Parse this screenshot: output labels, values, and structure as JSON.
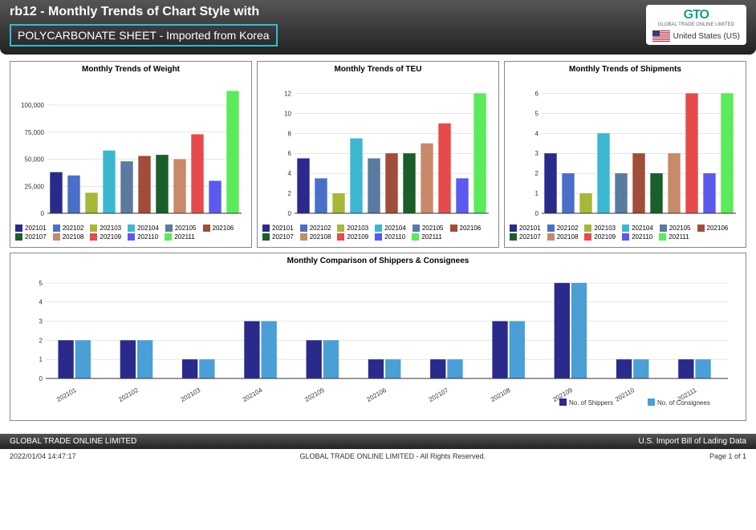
{
  "header": {
    "title": "rb12 - Monthly Trends of Chart Style with",
    "subtitle": "POLYCARBONATE SHEET - Imported from Korea",
    "logo_text": "GTO",
    "logo_sub": "GLOBAL TRADE ONLINE LIMITED",
    "country_name": "United States (US)"
  },
  "colors": {
    "series": [
      "#2a2a8c",
      "#4a6fc9",
      "#a7b836",
      "#3bb8d0",
      "#5a7aa0",
      "#a04d3a",
      "#1a5e2a",
      "#c98a6a",
      "#e64a4a",
      "#5a5af0",
      "#5aeb5a"
    ],
    "comparison": [
      "#2a2a8c",
      "#4a9fd6"
    ],
    "grid": "#cccccc",
    "axis": "#333333"
  },
  "chart1": {
    "title": "Monthly Trends of Weight",
    "values": [
      38000,
      35000,
      19000,
      58000,
      48000,
      53000,
      54000,
      50000,
      73000,
      30000,
      113000
    ],
    "ylim": [
      0,
      120000
    ],
    "yticks": [
      0,
      25000,
      50000,
      75000,
      100000
    ],
    "ytick_labels": [
      "0",
      "25,000",
      "50,000",
      "75,000",
      "100,000"
    ]
  },
  "chart2": {
    "title": "Monthly Trends of TEU",
    "values": [
      5.5,
      3.5,
      2,
      7.5,
      5.5,
      6,
      6,
      7,
      9,
      3.5,
      12
    ],
    "ylim": [
      0,
      13
    ],
    "yticks": [
      0,
      2,
      4,
      6,
      8,
      10,
      12
    ],
    "ytick_labels": [
      "0",
      "2",
      "4",
      "6",
      "8",
      "10",
      "12"
    ]
  },
  "chart3": {
    "title": "Monthly Trends of Shipments",
    "values": [
      3,
      2,
      1,
      4,
      2,
      3,
      2,
      3,
      6,
      2,
      6
    ],
    "ylim": [
      0,
      6.5
    ],
    "yticks": [
      0,
      1,
      2,
      3,
      4,
      5,
      6
    ],
    "ytick_labels": [
      "0",
      "1",
      "2",
      "3",
      "4",
      "5",
      "6"
    ]
  },
  "chart4": {
    "title": "Monthly Comparison of Shippers & Consignees",
    "categories": [
      "202101",
      "202102",
      "202103",
      "202104",
      "202105",
      "202106",
      "202107",
      "202108",
      "202109",
      "202110",
      "202111"
    ],
    "series": [
      {
        "label": "No. of Shippers",
        "values": [
          2,
          2,
          1,
          3,
          2,
          1,
          1,
          3,
          5,
          1,
          1
        ]
      },
      {
        "label": "No. of Consignees",
        "values": [
          2,
          2,
          1,
          3,
          2,
          1,
          1,
          3,
          5,
          1,
          1
        ]
      }
    ],
    "ylim": [
      0,
      5.5
    ],
    "yticks": [
      0,
      1,
      2,
      3,
      4,
      5
    ],
    "ytick_labels": [
      "0",
      "1",
      "2",
      "3",
      "4",
      "5"
    ]
  },
  "legend_labels": [
    "202101",
    "202102",
    "202103",
    "202104",
    "202105",
    "202106",
    "202107",
    "202108",
    "202109",
    "202110",
    "202111"
  ],
  "footer": {
    "left": "GLOBAL TRADE ONLINE LIMITED",
    "right": "U.S. Import Bill of Lading Data",
    "timestamp": "2022/01/04 14:47:17",
    "copyright": "GLOBAL TRADE ONLINE LIMITED - All Rights Reserved.",
    "page": "Page 1 of 1"
  }
}
